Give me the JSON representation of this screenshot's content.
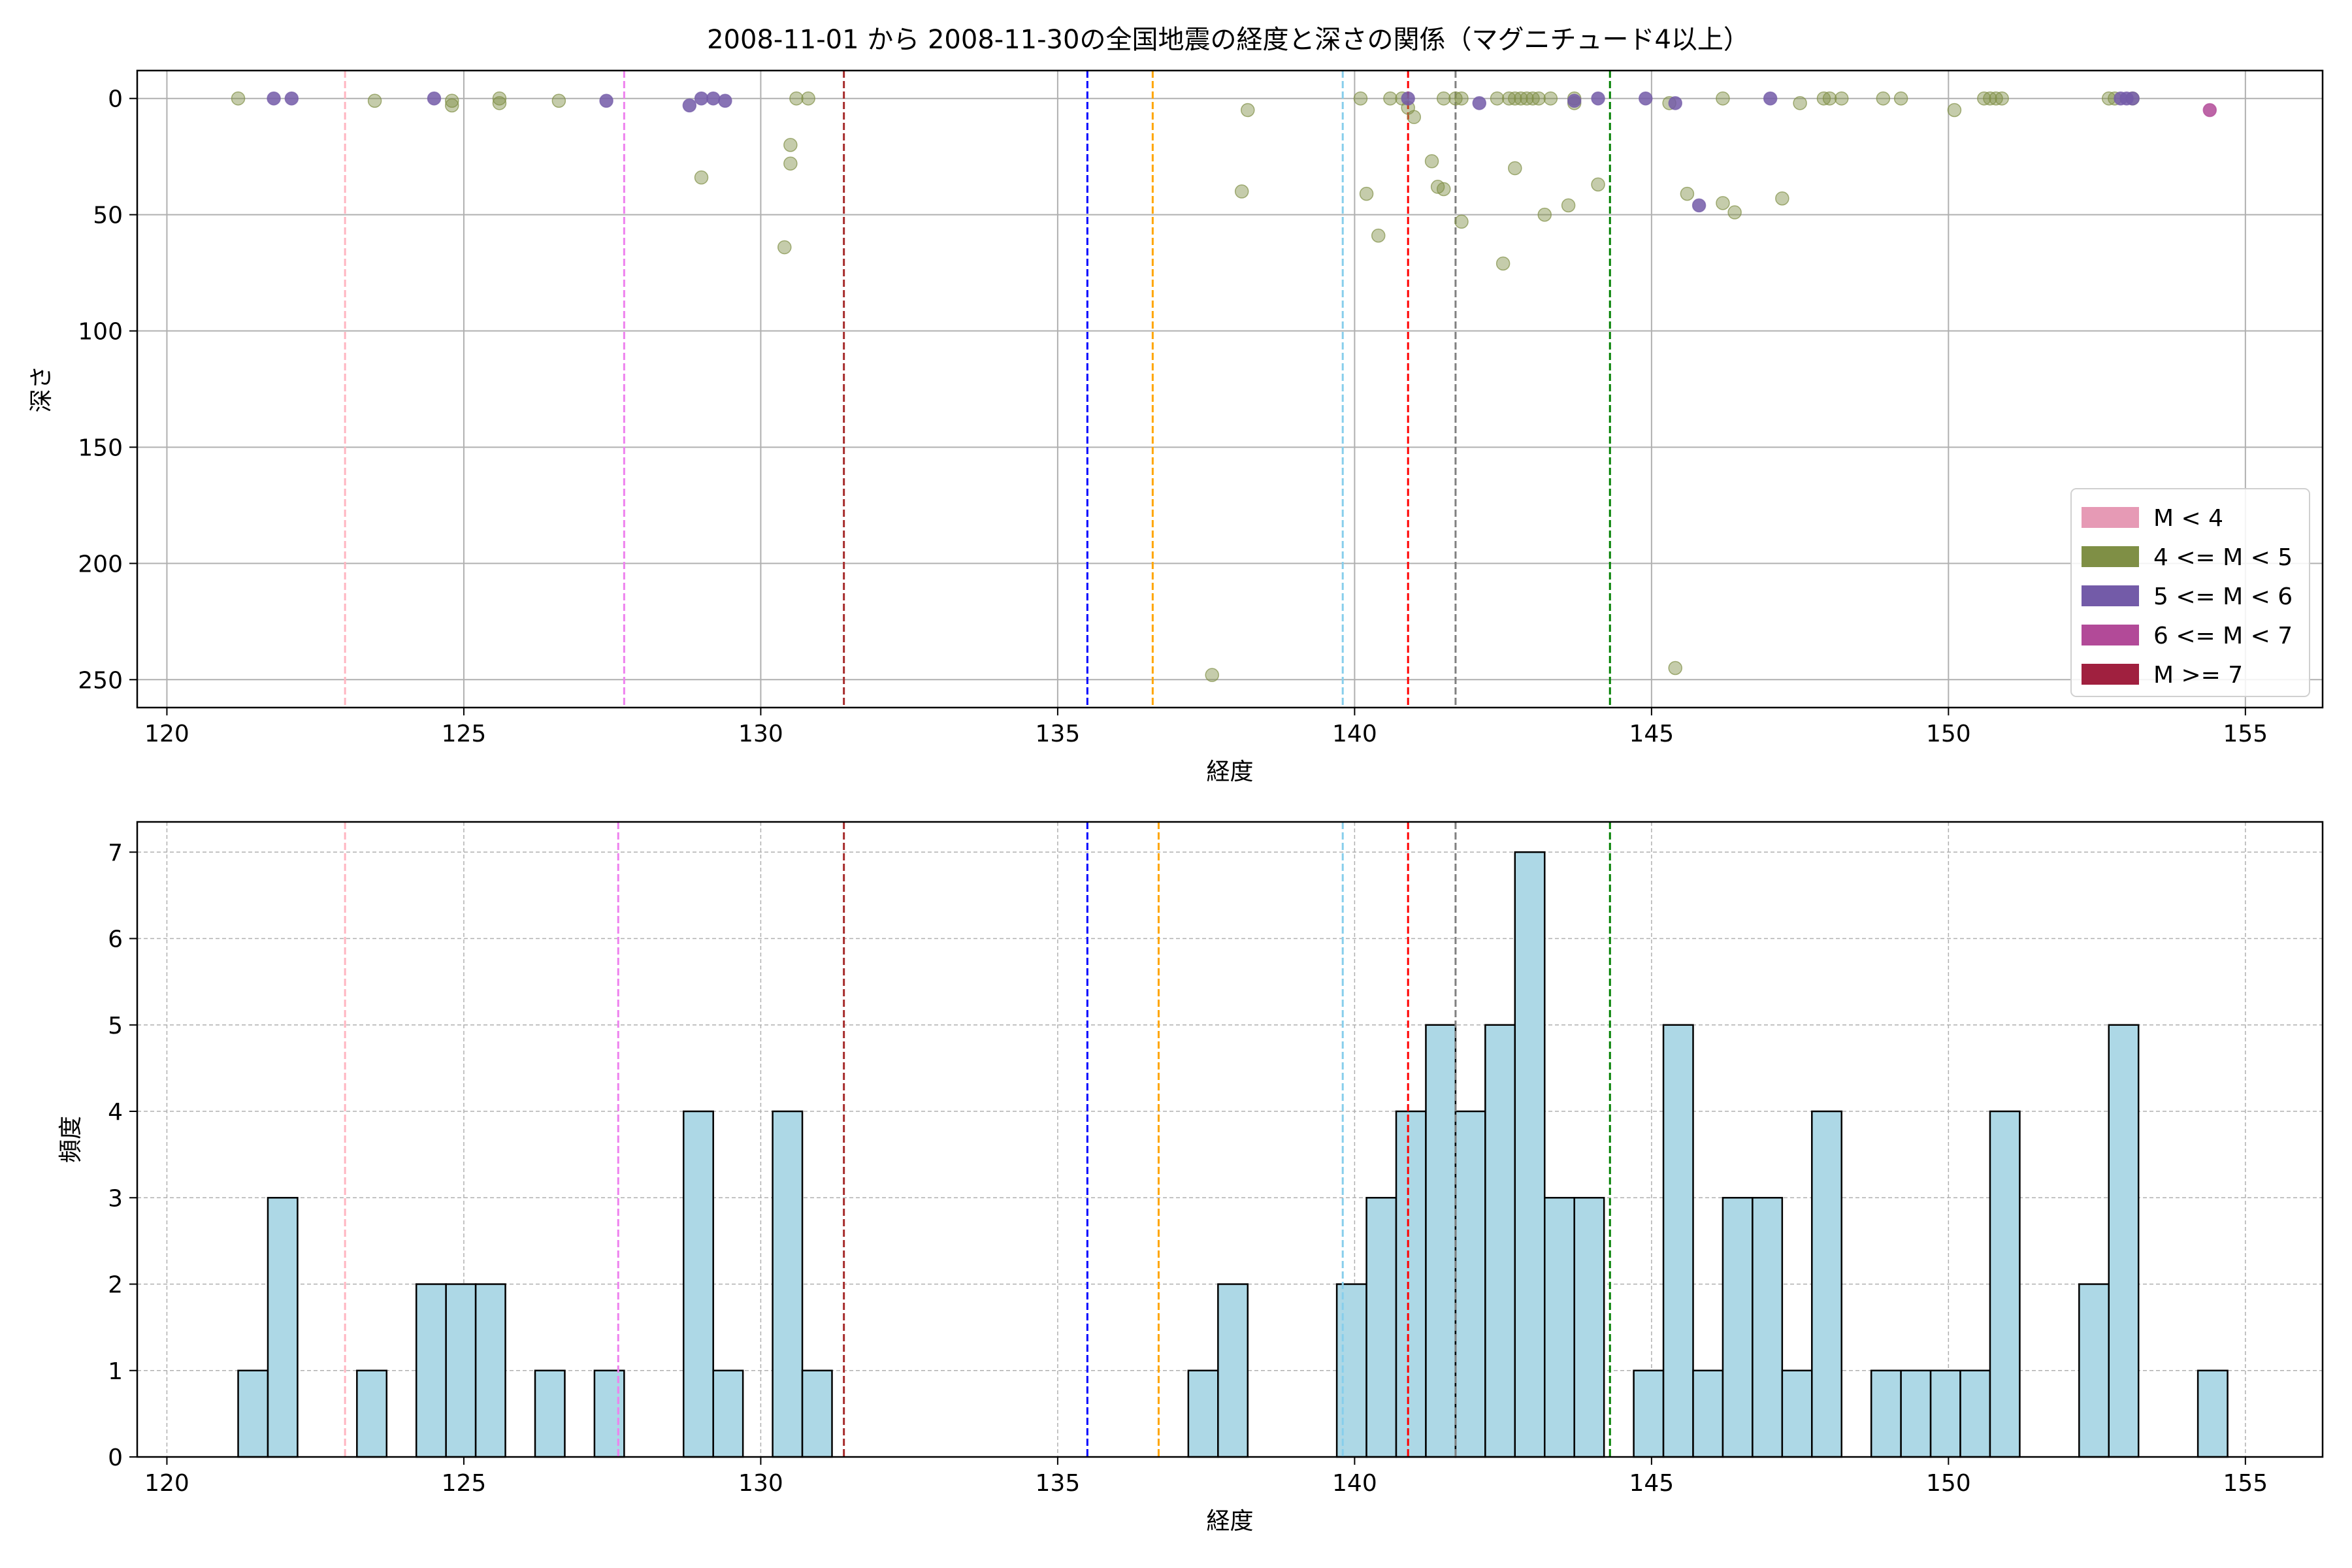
{
  "figure": {
    "title": "2008-11-01 から 2008-11-30の全国地震の経度と深さの関係（マグニチュード4以上）"
  },
  "chart_data": [
    {
      "type": "scatter",
      "xlabel": "経度",
      "ylabel": "深さ",
      "xlim": [
        119.5,
        156.3
      ],
      "ylim": [
        262,
        -12
      ],
      "y_inverted": true,
      "xticks": [
        120,
        125,
        130,
        135,
        140,
        145,
        150,
        155
      ],
      "yticks": [
        0,
        50,
        100,
        150,
        200,
        250
      ],
      "grid": true,
      "legend": {
        "position": "lower-right",
        "entries": [
          {
            "label": "M < 4",
            "color": "#e69ab5"
          },
          {
            "label": "4 <= M < 5",
            "color": "#7f8f45"
          },
          {
            "label": "5 <= M < 6",
            "color": "#735ba8"
          },
          {
            "label": "6 <= M < 7",
            "color": "#b24a98"
          },
          {
            "label": "M >= 7",
            "color": "#a0203f"
          }
        ]
      },
      "series": [
        {
          "class": "4 <= M < 5",
          "color": "#7f8f45",
          "points": [
            [
              121.2,
              0
            ],
            [
              123.5,
              1
            ],
            [
              124.8,
              1
            ],
            [
              124.8,
              3
            ],
            [
              125.6,
              0
            ],
            [
              125.6,
              2
            ],
            [
              126.6,
              1
            ],
            [
              129.0,
              34
            ],
            [
              130.4,
              64
            ],
            [
              130.5,
              20
            ],
            [
              130.5,
              28
            ],
            [
              130.6,
              0
            ],
            [
              130.8,
              0
            ],
            [
              137.6,
              248
            ],
            [
              138.1,
              40
            ],
            [
              138.2,
              5
            ],
            [
              140.1,
              0
            ],
            [
              140.2,
              41
            ],
            [
              140.4,
              59
            ],
            [
              140.6,
              0
            ],
            [
              140.8,
              0
            ],
            [
              140.9,
              4
            ],
            [
              141.0,
              8
            ],
            [
              141.3,
              27
            ],
            [
              141.4,
              38
            ],
            [
              141.5,
              39
            ],
            [
              141.5,
              0
            ],
            [
              141.7,
              0
            ],
            [
              141.8,
              53
            ],
            [
              141.8,
              0
            ],
            [
              142.4,
              0
            ],
            [
              142.5,
              71
            ],
            [
              142.6,
              0
            ],
            [
              142.7,
              30
            ],
            [
              142.7,
              0
            ],
            [
              142.8,
              0
            ],
            [
              142.9,
              0
            ],
            [
              143.0,
              0
            ],
            [
              143.1,
              0
            ],
            [
              143.2,
              50
            ],
            [
              143.3,
              0
            ],
            [
              143.6,
              46
            ],
            [
              143.7,
              2
            ],
            [
              143.7,
              0
            ],
            [
              144.1,
              37
            ],
            [
              145.3,
              2
            ],
            [
              145.4,
              245
            ],
            [
              145.6,
              41
            ],
            [
              146.2,
              0
            ],
            [
              146.2,
              45
            ],
            [
              146.4,
              49
            ],
            [
              147.2,
              43
            ],
            [
              147.5,
              2
            ],
            [
              147.9,
              0
            ],
            [
              148.0,
              0
            ],
            [
              148.2,
              0
            ],
            [
              148.9,
              0
            ],
            [
              149.2,
              0
            ],
            [
              150.1,
              5
            ],
            [
              150.6,
              0
            ],
            [
              150.7,
              0
            ],
            [
              150.8,
              0
            ],
            [
              150.9,
              0
            ],
            [
              152.7,
              0
            ],
            [
              152.8,
              0
            ],
            [
              153.1,
              0
            ]
          ]
        },
        {
          "class": "5 <= M < 6",
          "color": "#735ba8",
          "points": [
            [
              121.8,
              0
            ],
            [
              122.1,
              0
            ],
            [
              124.5,
              0
            ],
            [
              127.4,
              1
            ],
            [
              128.8,
              3
            ],
            [
              129.0,
              0
            ],
            [
              129.2,
              0
            ],
            [
              129.4,
              1
            ],
            [
              140.9,
              0
            ],
            [
              142.1,
              2
            ],
            [
              143.7,
              1
            ],
            [
              144.1,
              0
            ],
            [
              144.9,
              0
            ],
            [
              145.4,
              2
            ],
            [
              145.8,
              46
            ],
            [
              147.0,
              0
            ],
            [
              152.9,
              0
            ],
            [
              153.0,
              0
            ],
            [
              153.1,
              0
            ]
          ]
        },
        {
          "class": "6 <= M < 7",
          "color": "#b24a98",
          "points": [
            [
              154.4,
              5
            ]
          ]
        }
      ],
      "vlines": [
        {
          "x": 123.0,
          "color": "#ffb6c1"
        },
        {
          "x": 127.7,
          "color": "#ee82ee"
        },
        {
          "x": 131.4,
          "color": "#a52a2a"
        },
        {
          "x": 135.5,
          "color": "#0000ff"
        },
        {
          "x": 136.6,
          "color": "#ffa500"
        },
        {
          "x": 139.8,
          "color": "#87ceeb"
        },
        {
          "x": 140.9,
          "color": "#ff0000"
        },
        {
          "x": 141.7,
          "color": "#808080"
        },
        {
          "x": 144.3,
          "color": "#008000"
        }
      ]
    },
    {
      "type": "bar",
      "xlabel": "経度",
      "ylabel": "頻度",
      "xlim": [
        119.5,
        156.3
      ],
      "ylim": [
        0,
        7.35
      ],
      "xticks": [
        120,
        125,
        130,
        135,
        140,
        145,
        150,
        155
      ],
      "yticks": [
        0,
        1,
        2,
        3,
        4,
        5,
        6,
        7
      ],
      "grid": true,
      "bar_color": "#add8e6",
      "bin_width": 0.5,
      "bins": [
        {
          "start": 121.2,
          "count": 1
        },
        {
          "start": 121.7,
          "count": 3
        },
        {
          "start": 123.2,
          "count": 1
        },
        {
          "start": 124.2,
          "count": 2
        },
        {
          "start": 124.7,
          "count": 2
        },
        {
          "start": 125.2,
          "count": 2
        },
        {
          "start": 126.2,
          "count": 1
        },
        {
          "start": 127.2,
          "count": 1
        },
        {
          "start": 128.7,
          "count": 4
        },
        {
          "start": 129.2,
          "count": 1
        },
        {
          "start": 130.2,
          "count": 4
        },
        {
          "start": 130.7,
          "count": 1
        },
        {
          "start": 137.2,
          "count": 1
        },
        {
          "start": 137.7,
          "count": 2
        },
        {
          "start": 139.7,
          "count": 2
        },
        {
          "start": 140.2,
          "count": 3
        },
        {
          "start": 140.7,
          "count": 4
        },
        {
          "start": 141.2,
          "count": 5
        },
        {
          "start": 141.7,
          "count": 4
        },
        {
          "start": 142.2,
          "count": 5
        },
        {
          "start": 142.7,
          "count": 7
        },
        {
          "start": 143.2,
          "count": 3
        },
        {
          "start": 143.7,
          "count": 3
        },
        {
          "start": 144.7,
          "count": 1
        },
        {
          "start": 145.2,
          "count": 5
        },
        {
          "start": 145.7,
          "count": 1
        },
        {
          "start": 146.2,
          "count": 3
        },
        {
          "start": 146.7,
          "count": 3
        },
        {
          "start": 147.2,
          "count": 1
        },
        {
          "start": 147.7,
          "count": 4
        },
        {
          "start": 148.7,
          "count": 1
        },
        {
          "start": 149.2,
          "count": 1
        },
        {
          "start": 149.7,
          "count": 1
        },
        {
          "start": 150.2,
          "count": 1
        },
        {
          "start": 150.7,
          "count": 4
        },
        {
          "start": 152.2,
          "count": 2
        },
        {
          "start": 152.7,
          "count": 5
        },
        {
          "start": 154.2,
          "count": 1
        }
      ],
      "vlines": [
        {
          "x": 123.0,
          "color": "#ffb6c1"
        },
        {
          "x": 127.6,
          "color": "#ee82ee"
        },
        {
          "x": 131.4,
          "color": "#a52a2a"
        },
        {
          "x": 135.5,
          "color": "#0000ff"
        },
        {
          "x": 136.7,
          "color": "#ffa500"
        },
        {
          "x": 139.8,
          "color": "#87ceeb"
        },
        {
          "x": 140.9,
          "color": "#ff0000"
        },
        {
          "x": 141.7,
          "color": "#808080"
        },
        {
          "x": 144.3,
          "color": "#008000"
        }
      ]
    }
  ]
}
